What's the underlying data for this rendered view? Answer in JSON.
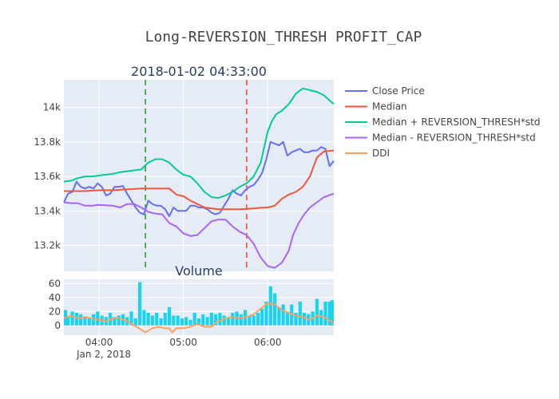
{
  "chart_data": {
    "title": "Long-REVERSION_THRESH PROFIT_CAP",
    "price_panel": {
      "type": "line",
      "subtitle": "2018-01-02 04:33:00",
      "x_range": [
        "03:35",
        "06:47"
      ],
      "ylim": [
        13050,
        14160
      ],
      "yticks": [
        {
          "v": 13200,
          "label": "13.2k"
        },
        {
          "v": 13400,
          "label": "13.4k"
        },
        {
          "v": 13600,
          "label": "13.6k"
        },
        {
          "v": 13800,
          "label": "13.8k"
        },
        {
          "v": 14000,
          "label": "14k"
        }
      ],
      "vlines": [
        {
          "x": "04:33",
          "color": "#2ca02c",
          "style": "dashed"
        },
        {
          "x": "05:45",
          "color": "#ef553b",
          "style": "dashed"
        }
      ],
      "series": [
        {
          "name": "Close Price",
          "color": "#636efa",
          "x": [
            "03:35",
            "03:38",
            "03:41",
            "03:44",
            "03:47",
            "03:50",
            "03:53",
            "03:56",
            "03:59",
            "04:02",
            "04:05",
            "04:08",
            "04:11",
            "04:14",
            "04:17",
            "04:20",
            "04:23",
            "04:26",
            "04:29",
            "04:32",
            "04:35",
            "04:38",
            "04:41",
            "04:44",
            "04:47",
            "04:50",
            "04:53",
            "04:56",
            "04:59",
            "05:02",
            "05:05",
            "05:08",
            "05:11",
            "05:14",
            "05:17",
            "05:20",
            "05:23",
            "05:26",
            "05:29",
            "05:32",
            "05:35",
            "05:38",
            "05:41",
            "05:44",
            "05:47",
            "05:50",
            "05:53",
            "05:56",
            "05:59",
            "06:02",
            "06:05",
            "06:08",
            "06:11",
            "06:14",
            "06:17",
            "06:20",
            "06:23",
            "06:26",
            "06:29",
            "06:32",
            "06:35",
            "06:38",
            "06:41",
            "06:44",
            "06:47"
          ],
          "y": [
            13450,
            13500,
            13510,
            13570,
            13540,
            13530,
            13540,
            13530,
            13560,
            13540,
            13490,
            13500,
            13540,
            13540,
            13545,
            13500,
            13460,
            13420,
            13390,
            13380,
            13460,
            13440,
            13430,
            13430,
            13410,
            13370,
            13420,
            13400,
            13400,
            13400,
            13430,
            13430,
            13420,
            13420,
            13410,
            13390,
            13380,
            13390,
            13430,
            13470,
            13520,
            13500,
            13490,
            13520,
            13540,
            13550,
            13580,
            13620,
            13700,
            13800,
            13790,
            13780,
            13800,
            13720,
            13740,
            13750,
            13760,
            13740,
            13740,
            13750,
            13750,
            13770,
            13760,
            13660,
            13690
          ]
        },
        {
          "name": "Median",
          "color": "#ef553b",
          "x": [
            "03:35",
            "03:50",
            "04:00",
            "04:10",
            "04:20",
            "04:30",
            "04:40",
            "04:50",
            "04:55",
            "05:00",
            "05:05",
            "05:10",
            "05:15",
            "05:20",
            "05:25",
            "05:30",
            "05:35",
            "05:40",
            "05:45",
            "05:50",
            "05:55",
            "06:00",
            "06:05",
            "06:10",
            "06:15",
            "06:20",
            "06:25",
            "06:30",
            "06:35",
            "06:40",
            "06:47"
          ],
          "y": [
            13515,
            13515,
            13520,
            13520,
            13525,
            13530,
            13530,
            13530,
            13495,
            13485,
            13460,
            13440,
            13420,
            13415,
            13410,
            13410,
            13410,
            13410,
            13412,
            13415,
            13418,
            13420,
            13430,
            13470,
            13495,
            13510,
            13540,
            13600,
            13710,
            13745,
            13750
          ]
        },
        {
          "name": "Median + REVERSION_THRESH*std",
          "color": "#00cc96",
          "x": [
            "03:35",
            "03:40",
            "03:45",
            "03:50",
            "03:55",
            "04:00",
            "04:10",
            "04:15",
            "04:20",
            "04:25",
            "04:30",
            "04:35",
            "04:40",
            "04:45",
            "04:50",
            "04:55",
            "05:00",
            "05:05",
            "05:10",
            "05:15",
            "05:20",
            "05:25",
            "05:30",
            "05:35",
            "05:40",
            "05:45",
            "05:50",
            "05:55",
            "06:00",
            "06:03",
            "06:06",
            "06:10",
            "06:15",
            "06:20",
            "06:25",
            "06:30",
            "06:35",
            "06:40",
            "06:44",
            "06:47"
          ],
          "y": [
            13570,
            13575,
            13590,
            13600,
            13600,
            13605,
            13615,
            13625,
            13630,
            13635,
            13640,
            13680,
            13700,
            13700,
            13680,
            13640,
            13610,
            13600,
            13560,
            13510,
            13480,
            13475,
            13490,
            13510,
            13540,
            13560,
            13600,
            13680,
            13860,
            13920,
            13960,
            13980,
            14020,
            14080,
            14110,
            14100,
            14090,
            14070,
            14040,
            14020
          ]
        },
        {
          "name": "Median - REVERSION_THRESH*std",
          "color": "#ab63fa",
          "x": [
            "03:35",
            "03:40",
            "03:45",
            "03:50",
            "03:55",
            "04:00",
            "04:10",
            "04:15",
            "04:20",
            "04:25",
            "04:30",
            "04:35",
            "04:40",
            "04:45",
            "04:50",
            "04:55",
            "05:00",
            "05:05",
            "05:10",
            "05:15",
            "05:20",
            "05:25",
            "05:30",
            "05:35",
            "05:40",
            "05:45",
            "05:50",
            "05:55",
            "06:00",
            "06:05",
            "06:10",
            "06:15",
            "06:18",
            "06:22",
            "06:26",
            "06:30",
            "06:35",
            "06:40",
            "06:47"
          ],
          "y": [
            13450,
            13445,
            13445,
            13430,
            13430,
            13435,
            13430,
            13420,
            13440,
            13440,
            13420,
            13395,
            13385,
            13380,
            13330,
            13310,
            13270,
            13255,
            13260,
            13300,
            13340,
            13350,
            13350,
            13310,
            13280,
            13260,
            13210,
            13130,
            13080,
            13070,
            13100,
            13170,
            13260,
            13330,
            13380,
            13420,
            13450,
            13480,
            13500
          ]
        }
      ]
    },
    "volume_panel": {
      "type": "bar",
      "subtitle": "Volume",
      "ylim": [
        -14,
        66
      ],
      "yticks": [
        {
          "v": 0,
          "label": "0"
        },
        {
          "v": 20,
          "label": "20"
        },
        {
          "v": 40,
          "label": "40"
        },
        {
          "v": 60,
          "label": "60"
        }
      ],
      "bar_series": {
        "name": "Volume",
        "color": "#19d3f3",
        "x": [
          "03:35",
          "03:38",
          "03:41",
          "03:44",
          "03:47",
          "03:50",
          "03:53",
          "03:56",
          "03:59",
          "04:02",
          "04:05",
          "04:08",
          "04:11",
          "04:14",
          "04:17",
          "04:20",
          "04:23",
          "04:26",
          "04:29",
          "04:32",
          "04:35",
          "04:38",
          "04:41",
          "04:44",
          "04:47",
          "04:50",
          "04:53",
          "04:56",
          "04:59",
          "05:02",
          "05:05",
          "05:08",
          "05:11",
          "05:14",
          "05:17",
          "05:20",
          "05:23",
          "05:26",
          "05:29",
          "05:32",
          "05:35",
          "05:38",
          "05:41",
          "05:44",
          "05:47",
          "05:50",
          "05:53",
          "05:56",
          "05:59",
          "06:02",
          "06:05",
          "06:08",
          "06:11",
          "06:14",
          "06:17",
          "06:20",
          "06:23",
          "06:26",
          "06:29",
          "06:32",
          "06:35",
          "06:38",
          "06:41",
          "06:44",
          "06:47"
        ],
        "y": [
          22,
          12,
          20,
          18,
          16,
          12,
          10,
          16,
          20,
          14,
          12,
          18,
          12,
          14,
          16,
          12,
          20,
          10,
          62,
          22,
          18,
          14,
          18,
          10,
          18,
          26,
          14,
          14,
          10,
          12,
          8,
          18,
          10,
          16,
          12,
          18,
          16,
          18,
          14,
          12,
          18,
          20,
          16,
          22,
          14,
          14,
          18,
          24,
          34,
          56,
          46,
          26,
          30,
          20,
          30,
          18,
          34,
          18,
          16,
          20,
          38,
          22,
          34,
          34,
          36
        ]
      },
      "line_series": {
        "name": "DDI",
        "color": "#ffa15a",
        "x": [
          "03:35",
          "03:40",
          "03:45",
          "03:50",
          "03:55",
          "04:00",
          "04:05",
          "04:10",
          "04:15",
          "04:20",
          "04:25",
          "04:30",
          "04:33",
          "04:38",
          "04:42",
          "04:47",
          "04:50",
          "04:52",
          "04:55",
          "05:00",
          "05:05",
          "05:10",
          "05:15",
          "05:20",
          "05:25",
          "05:30",
          "05:35",
          "05:40",
          "05:45",
          "05:50",
          "05:55",
          "06:00",
          "06:05",
          "06:10",
          "06:15",
          "06:20",
          "06:25",
          "06:30",
          "06:35",
          "06:40",
          "06:45",
          "06:47"
        ],
        "y": [
          10,
          14,
          10,
          12,
          10,
          8,
          6,
          10,
          10,
          6,
          0,
          -6,
          -10,
          -4,
          -2,
          -4,
          -4,
          -10,
          -4,
          -4,
          -2,
          2,
          -2,
          -2,
          6,
          10,
          12,
          10,
          12,
          16,
          24,
          32,
          30,
          22,
          18,
          14,
          12,
          8,
          14,
          12,
          6,
          2
        ]
      },
      "x_range": [
        "03:35",
        "06:47"
      ]
    },
    "xaxis": {
      "ticks": [
        {
          "t": "04:00",
          "label": "04:00"
        },
        {
          "t": "05:00",
          "label": "05:00"
        },
        {
          "t": "06:00",
          "label": "06:00"
        }
      ],
      "date_label": "Jan 2, 2018"
    },
    "legend": {
      "placement": "top-right",
      "items": [
        {
          "label": "Close Price",
          "color": "#636efa"
        },
        {
          "label": "Median",
          "color": "#ef553b"
        },
        {
          "label": "Median + REVERSION_THRESH*std",
          "color": "#00cc96"
        },
        {
          "label": "Median - REVERSION_THRESH*std",
          "color": "#ab63fa"
        },
        {
          "label": "DDI",
          "color": "#ffa15a"
        }
      ]
    },
    "grid": true,
    "plot_bg": "#e5ecf6"
  }
}
